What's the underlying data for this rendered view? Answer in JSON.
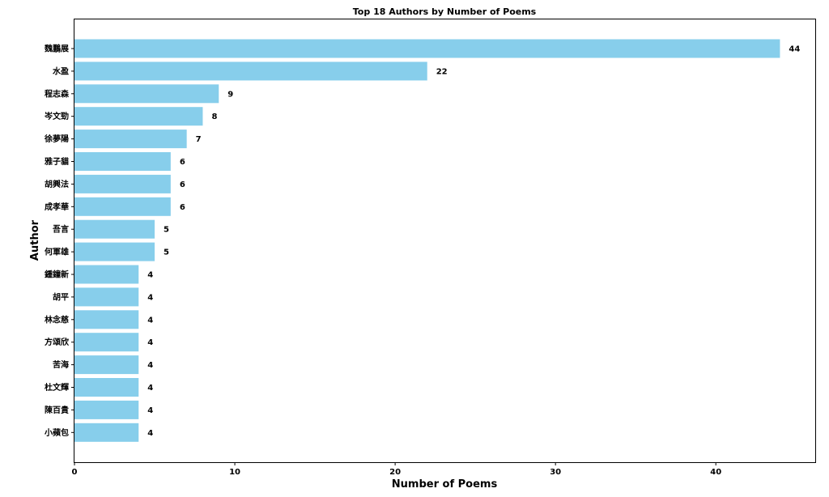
{
  "chart_data": {
    "type": "bar",
    "orientation": "horizontal",
    "title": "Top 18 Authors by Number of Poems",
    "xlabel": "Number of Poems",
    "ylabel": "Author",
    "categories": [
      "魏鵬展",
      "水盈",
      "程志森",
      "岑文勁",
      "徐夢陽",
      "雅子貓",
      "胡興法",
      "成孝華",
      "吾言",
      "何軍雄",
      "鍾鐘新",
      "胡平",
      "林念慈",
      "方頌欣",
      "苦海",
      "杜文輝",
      "陳百貴",
      "小蘋包"
    ],
    "values": [
      44,
      22,
      9,
      8,
      7,
      6,
      6,
      6,
      5,
      5,
      4,
      4,
      4,
      4,
      4,
      4,
      4,
      4
    ],
    "xlim": [
      0,
      46.2
    ],
    "xticks": [
      0,
      10,
      20,
      30,
      40
    ],
    "grid": false,
    "bar_color": "#87ceeb"
  }
}
